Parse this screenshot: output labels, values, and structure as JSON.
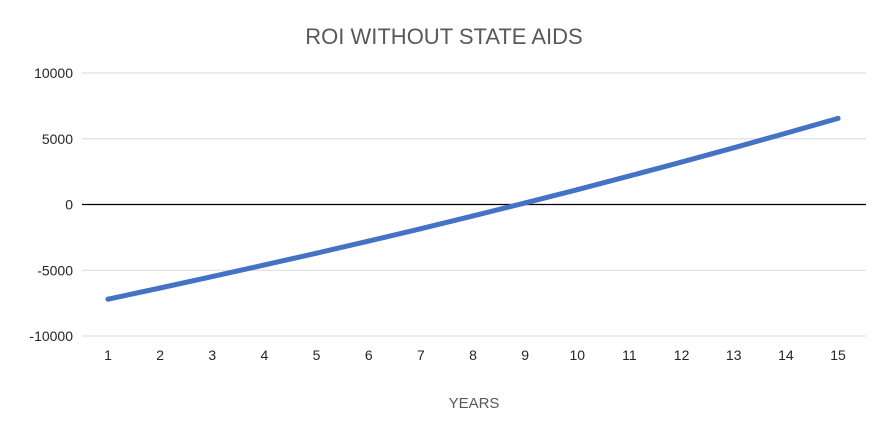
{
  "chart_data": {
    "type": "line",
    "title": "ROI WITHOUT STATE AIDS",
    "xlabel": "YEARS",
    "ylabel": "",
    "x": [
      1,
      2,
      3,
      4,
      5,
      6,
      7,
      8,
      9,
      10,
      11,
      12,
      13,
      14,
      15
    ],
    "categories": [
      "1",
      "2",
      "3",
      "4",
      "5",
      "6",
      "7",
      "8",
      "9",
      "10",
      "11",
      "12",
      "13",
      "14",
      "15"
    ],
    "series": [
      {
        "values": [
          -7200,
          -6350,
          -5480,
          -4600,
          -3700,
          -2780,
          -1840,
          -870,
          120,
          1130,
          2170,
          3230,
          4310,
          5420,
          6550
        ],
        "color": "#4472c4"
      }
    ],
    "ylim": [
      -10000,
      10000
    ],
    "yticks": [
      10000,
      5000,
      0,
      -5000,
      -10000
    ],
    "ytick_labels": [
      "10000",
      "5000",
      "0",
      "-5000",
      "-10000"
    ],
    "grid": true,
    "legend": "none",
    "colors": {
      "gridline": "#d9d9d9",
      "zero_line": "#000000",
      "series_line": "#4472c4"
    }
  }
}
